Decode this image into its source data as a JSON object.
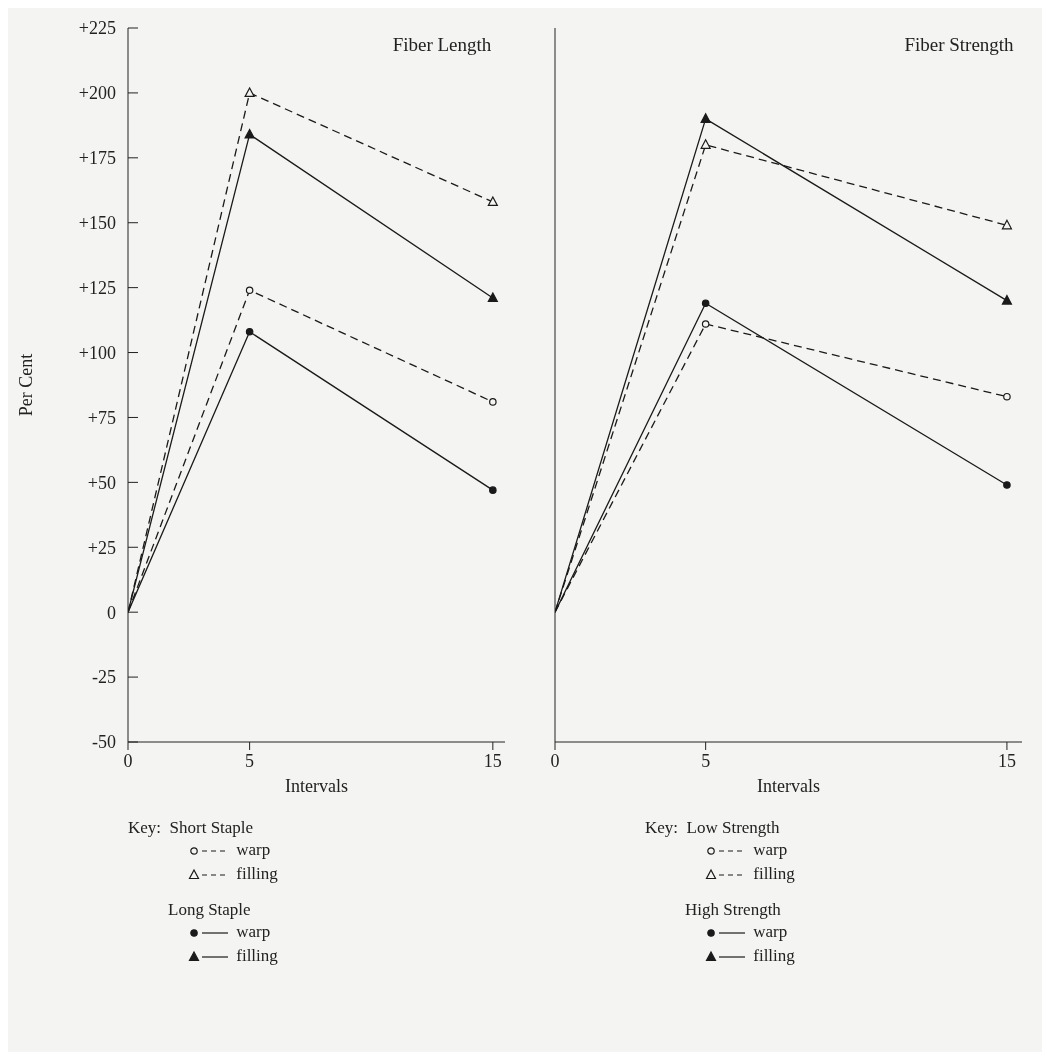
{
  "chart_data": [
    {
      "type": "line",
      "title": "Fiber Length",
      "xlabel": "Intervals",
      "ylabel": "Per Cent",
      "legend_title": "Key:",
      "annotations": [
        "Short Staple",
        "Long Staple"
      ],
      "x": [
        0,
        5,
        15
      ],
      "xlim": [
        0,
        15.5
      ],
      "xticks": [
        0,
        5,
        15
      ],
      "ylim": [
        -50,
        225
      ],
      "yticks": [
        {
          "value": 225,
          "label": "+225"
        },
        {
          "value": 200,
          "label": "+200"
        },
        {
          "value": 175,
          "label": "+175"
        },
        {
          "value": 150,
          "label": "+150"
        },
        {
          "value": 125,
          "label": "+125"
        },
        {
          "value": 100,
          "label": "+100"
        },
        {
          "value": 75,
          "label": "+75"
        },
        {
          "value": 50,
          "label": "+50"
        },
        {
          "value": 25,
          "label": "+25"
        },
        0,
        -25,
        -50
      ],
      "grid": false,
      "legend": "bottom",
      "series": [
        {
          "name": "warp",
          "color": "#1a1a1a",
          "marker": "circle",
          "line_style": "dashed",
          "values": [
            0,
            124,
            81
          ]
        },
        {
          "name": "filling",
          "color": "#1a1a1a",
          "marker": "triangle",
          "line_style": "dashed",
          "values": [
            0,
            200,
            158
          ]
        },
        {
          "name": "warp",
          "color": "#1a1a1a",
          "marker": "circle",
          "line_style": "solid",
          "values": [
            0,
            108,
            47
          ]
        },
        {
          "name": "filling",
          "color": "#1a1a1a",
          "marker": "triangle",
          "line_style": "solid",
          "values": [
            0,
            184,
            121
          ]
        }
      ]
    },
    {
      "type": "line",
      "title": "Fiber Strength",
      "xlabel": "Intervals",
      "legend_title": "Key:",
      "annotations": [
        "Low Strength",
        "High Strength"
      ],
      "x": [
        0,
        5,
        15
      ],
      "xlim": [
        0,
        15.5
      ],
      "xticks": [
        0,
        5,
        15
      ],
      "ylim": [
        -50,
        225
      ],
      "tick_labels": "x",
      "grid": false,
      "legend": "bottom",
      "series": [
        {
          "name": "warp",
          "color": "#1a1a1a",
          "marker": "circle",
          "line_style": "dashed",
          "values": [
            0,
            111,
            83
          ]
        },
        {
          "name": "filling",
          "color": "#1a1a1a",
          "marker": "triangle",
          "line_style": "dashed",
          "values": [
            0,
            180,
            149
          ]
        },
        {
          "name": "warp",
          "color": "#1a1a1a",
          "marker": "circle",
          "line_style": "solid",
          "values": [
            0,
            119,
            49
          ]
        },
        {
          "name": "filling",
          "color": "#1a1a1a",
          "marker": "triangle",
          "line_style": "solid",
          "values": [
            0,
            190,
            120
          ]
        }
      ]
    }
  ]
}
